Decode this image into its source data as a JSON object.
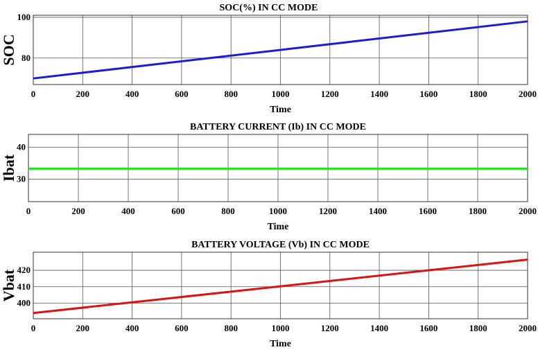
{
  "chart_data": [
    {
      "type": "line",
      "title": "SOC(%) IN CC MODE",
      "xlabel": "Time",
      "ylabel": "SOC",
      "xlim": [
        0,
        2000
      ],
      "ylim": [
        67,
        101
      ],
      "xticks": [
        0,
        200,
        400,
        600,
        800,
        1000,
        1200,
        1400,
        1600,
        1800,
        2000
      ],
      "yticks": [
        80,
        100
      ],
      "grid": true,
      "series": [
        {
          "color": "#1c1cd6",
          "x": [
            0,
            2000
          ],
          "y": [
            70,
            98
          ]
        }
      ]
    },
    {
      "type": "line",
      "title": "BATTERY CURRENT (Ib) IN CC MODE",
      "xlabel": "Time",
      "ylabel": "Ibat",
      "xlim": [
        0,
        2000
      ],
      "ylim": [
        23,
        44
      ],
      "xticks": [
        0,
        200,
        400,
        600,
        800,
        1000,
        1200,
        1400,
        1600,
        1800,
        2000
      ],
      "yticks": [
        30,
        40
      ],
      "grid": true,
      "series": [
        {
          "color": "#22e022",
          "x": [
            0,
            2000
          ],
          "y": [
            33.3,
            33.3
          ]
        }
      ]
    },
    {
      "type": "line",
      "title": "BATTERY VOLTAGE (Vb) IN CC MODE",
      "xlabel": "Time",
      "ylabel": "Vbat",
      "xlim": [
        0,
        2000
      ],
      "ylim": [
        390.5,
        431
      ],
      "xticks": [
        0,
        200,
        400,
        600,
        800,
        1000,
        1200,
        1400,
        1600,
        1800,
        2000
      ],
      "yticks": [
        400,
        410,
        420
      ],
      "grid": true,
      "series": [
        {
          "color": "#dd1111",
          "x": [
            0,
            2000
          ],
          "y": [
            394,
            426.5
          ]
        }
      ]
    }
  ]
}
